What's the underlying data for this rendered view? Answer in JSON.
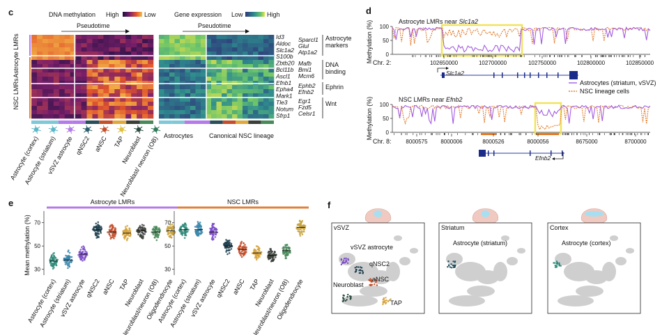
{
  "panel_c": {
    "label": "c",
    "methylation": {
      "title": "DNA methylation",
      "high": "High",
      "low": "Low",
      "pseudotime": "Pseudotime"
    },
    "expression": {
      "title": "Gene expression",
      "low": "Low",
      "high": "High",
      "pseudotime": "Pseudotime"
    },
    "row_groups": [
      "Astrocyte LMRs",
      "NSC LMRs"
    ],
    "genes": [
      "Id3",
      "Aldoc",
      "Slc1a2",
      "S100b",
      "Zbtb20",
      "Bcl11b",
      "Ascl1",
      "Efnb1",
      "Epha4",
      "Mark1",
      "Tle3",
      "Notum",
      "Sfrp1"
    ],
    "genes2": [
      "Sparcl1",
      "Glul",
      "Atp1a2",
      "Mafb",
      "Bmi1",
      "Mcm6",
      "Ephb2",
      "Efnb2",
      "Egr1",
      "Fzd5",
      "Celsr1"
    ],
    "categories": [
      "Astrocyte markers",
      "DNA binding",
      "Ephrin",
      "Wnt"
    ],
    "cell_types": [
      "Astrocyte (cortex)",
      "Astrocyte (striatum)",
      "vSVZ astrocyte",
      "qNSC2",
      "aNSC",
      "TAP",
      "Neuroblast",
      "Neuroblast/ neuron (OB)"
    ],
    "bottom_labels": [
      "Astrocytes",
      "Canonical NSC lineage"
    ],
    "colors": {
      "astro": "#b57be8",
      "nsc": "#e0823a",
      "magma_low": "#f5c04a",
      "magma_high": "#1d1040",
      "viridis_low": "#2e6a8e",
      "viridis_high": "#e8e24a"
    }
  },
  "panel_d": {
    "label": "d",
    "top": {
      "title_prefix": "Astrocyte LMRs near ",
      "title_gene": "Slc1a2",
      "chr": "Chr. 2:",
      "ticks": [
        "102650000",
        "102700000",
        "102750000",
        "102800000",
        "102850000"
      ],
      "gene": "Slc1a2"
    },
    "bottom": {
      "title_prefix": "NSC LMRs near ",
      "title_gene": "Efnb2",
      "chr": "Chr. 8:",
      "ticks": [
        "8000575",
        "8000006",
        "8000526",
        "8000056",
        "8675000",
        "8700000"
      ],
      "gene": "Efnb2"
    },
    "ylabel": "Methylation (%)",
    "yticks": [
      "100",
      "50",
      "0"
    ],
    "legend": [
      "Astrocytes (striatum, vSVZ)",
      "NSC lineage cells"
    ],
    "colors": {
      "astro": "#a35ce0",
      "nsc": "#e37a28",
      "highlight": "#f1e35a"
    }
  },
  "panel_e": {
    "label": "e",
    "ylabel": "Mean methylation (%)",
    "yticks": [
      "70",
      "50",
      "30"
    ],
    "groups": [
      "Astrocyte LMRs",
      "NSC LMRs"
    ],
    "categories": [
      "Astrocyte (cortex)",
      "Astrocyte (striatum)",
      "vSVZ astrocyte",
      "qNSC2",
      "aNSC",
      "TAP",
      "Neuroblast",
      "Neuroblast/neuron (OB)",
      "Oligodendrocyte"
    ],
    "astro_medians": [
      37,
      38,
      43,
      64,
      62,
      61,
      63,
      62,
      63
    ],
    "nsc_medians": [
      64,
      64,
      62,
      50,
      47,
      44,
      42,
      46,
      66
    ],
    "colors": [
      "#2e8a7a",
      "#3a86ab",
      "#7b4cc8",
      "#1f3f4f",
      "#c44f2a",
      "#d6a23c",
      "#3b3f3a",
      "#4a8a5a",
      "#c7a23e"
    ]
  },
  "panel_f": {
    "label": "f",
    "panels": [
      {
        "title": "vSVZ",
        "labels": [
          "vSVZ astrocyte",
          "qNSC2",
          "aNSC",
          "Neuroblast",
          "TAP"
        ]
      },
      {
        "title": "Striatum",
        "labels": [
          "Astrocyte (striatum)"
        ]
      },
      {
        "title": "Cortex",
        "labels": [
          "Astrocyte (cortex)"
        ]
      }
    ]
  }
}
